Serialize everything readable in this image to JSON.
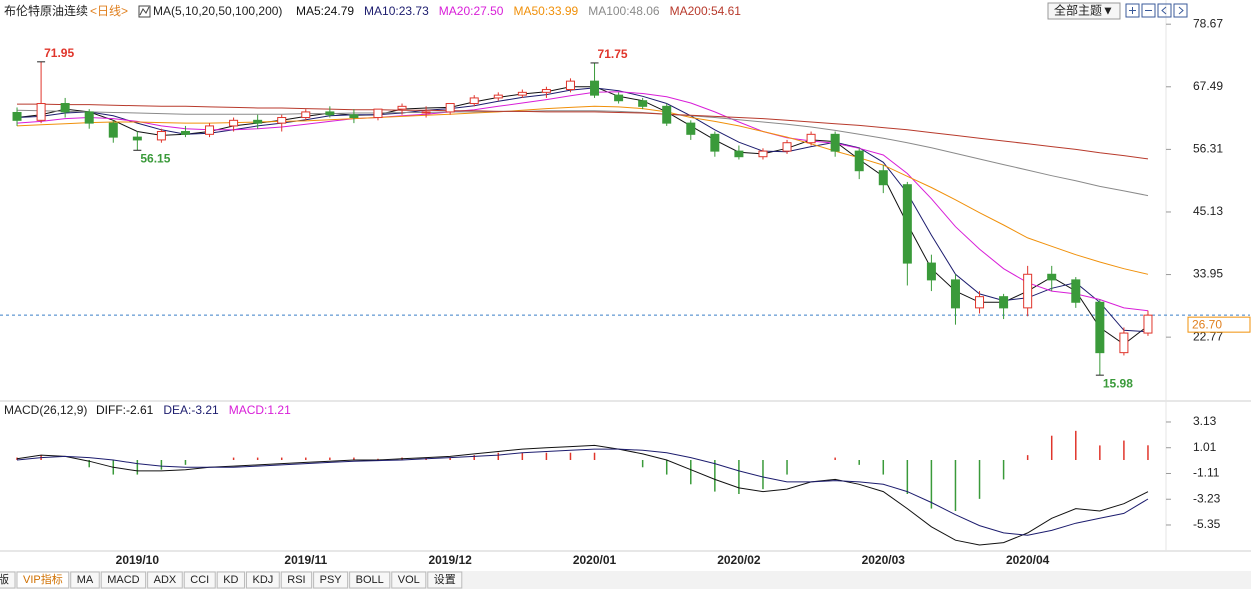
{
  "chart_data": [
    {
      "type": "candlestick",
      "title": "布伦特原油连续",
      "period": "<日线>",
      "indicator": "MA(5,10,20,50,100,200)",
      "up_color": "#e0352b",
      "down_color": "#3a9a3a",
      "open": [
        62.9,
        61.5,
        64.5,
        63,
        61,
        58.5,
        58,
        59.5,
        59,
        60.5,
        61.5,
        61,
        62,
        63,
        62.5,
        62,
        63.5,
        63,
        63,
        64.5,
        65.5,
        66,
        66.5,
        67,
        68.5,
        66,
        65,
        64,
        61,
        59,
        56,
        55,
        56,
        57.5,
        59,
        56,
        52.5,
        50,
        36,
        33,
        28,
        30,
        28,
        34,
        33,
        29,
        20,
        23.5
      ],
      "high": [
        63.8,
        71.95,
        65.5,
        63.5,
        61.5,
        59.5,
        60,
        60.5,
        61,
        62,
        62.5,
        62.5,
        63.5,
        64,
        63.5,
        63.5,
        64.5,
        64,
        64.5,
        66,
        66.5,
        67,
        67.5,
        69,
        71.75,
        66.5,
        65.5,
        64.5,
        61.5,
        59.5,
        57,
        56.5,
        58,
        59.5,
        59.5,
        56.5,
        53.5,
        50.5,
        37.5,
        34,
        31,
        30.5,
        35.5,
        35.5,
        33.5,
        29.5,
        24.5,
        27.5
      ],
      "low": [
        60.5,
        61,
        62,
        60,
        57.5,
        56.15,
        57.5,
        58.5,
        58.5,
        59.5,
        60,
        59.5,
        61.5,
        62,
        61,
        61.5,
        62.5,
        62,
        62.5,
        64,
        65,
        65.5,
        65.5,
        66.5,
        65.5,
        64.5,
        63.5,
        60.5,
        58,
        55,
        54.5,
        54.5,
        55.5,
        57,
        55,
        51,
        48.5,
        32,
        31,
        25,
        27,
        26,
        26.5,
        31,
        28,
        15.98,
        19.5,
        23
      ],
      "close": [
        61.5,
        64.5,
        63,
        61,
        58.5,
        58,
        59.5,
        59,
        60.5,
        61.5,
        61,
        62,
        63,
        62.5,
        62,
        63.5,
        64,
        63,
        64.5,
        65.5,
        66,
        66.5,
        67,
        68.5,
        66,
        65,
        64,
        61,
        59,
        56,
        55,
        56,
        57.5,
        59,
        56,
        52.5,
        50,
        36,
        33,
        28,
        30,
        28,
        34,
        33,
        29,
        20,
        23.5,
        26.7
      ],
      "series": [
        {
          "name": "MA5:24.79",
          "color": "#111111",
          "values": [
            62,
            62.5,
            63.5,
            63,
            61.5,
            59.5,
            58.8,
            59,
            59.5,
            60.5,
            61,
            61.5,
            62.2,
            62.8,
            62.4,
            62.5,
            63.5,
            63.7,
            63.8,
            64.8,
            65.6,
            66.2,
            66.6,
            67.5,
            67.5,
            65.8,
            65,
            63,
            60.5,
            58,
            55.8,
            55.5,
            56.5,
            58,
            57.7,
            54.5,
            51.5,
            43,
            35,
            31,
            29,
            29,
            31,
            33.5,
            31,
            24.5,
            21.5,
            24.79
          ]
        },
        {
          "name": "MA10:23.73",
          "color": "#1c1c6e",
          "values": [
            62,
            62.2,
            62.8,
            63,
            62.3,
            61,
            59.8,
            59,
            59.2,
            59.8,
            60.5,
            61,
            61.6,
            62.3,
            62.5,
            62.5,
            62.8,
            63.3,
            63.6,
            64.1,
            64.9,
            65.6,
            66.1,
            66.9,
            67.3,
            66.8,
            65.8,
            64.5,
            62.3,
            59.8,
            57.6,
            56,
            55.9,
            56.8,
            57.6,
            56.6,
            54,
            48.5,
            41,
            34,
            30.5,
            29.3,
            29.8,
            31.5,
            32.5,
            29,
            24,
            23.73
          ]
        },
        {
          "name": "MA20:27.50",
          "color": "#d81ed8",
          "values": [
            61,
            61.3,
            61.8,
            62,
            61.8,
            61.3,
            60.5,
            60,
            59.8,
            59.8,
            60,
            60.3,
            60.8,
            61.3,
            61.8,
            62,
            62.3,
            62.6,
            63,
            63.4,
            64,
            64.6,
            65.2,
            65.9,
            66.5,
            66.6,
            66.3,
            65.7,
            64.6,
            63,
            61.2,
            59.5,
            58.4,
            57.8,
            57.4,
            56.5,
            55.3,
            52,
            47.5,
            42.5,
            38.5,
            35,
            32.5,
            31,
            30.5,
            29.5,
            28,
            27.5
          ]
        },
        {
          "name": "MA50:33.99",
          "color": "#f0900a",
          "values": [
            60.5,
            60.7,
            60.9,
            61.1,
            61.2,
            61.2,
            61.1,
            61,
            61,
            61.1,
            61.2,
            61.3,
            61.4,
            61.6,
            61.8,
            62,
            62.2,
            62.4,
            62.6,
            62.8,
            63,
            63.3,
            63.6,
            63.8,
            64,
            63.9,
            63.6,
            63,
            62,
            61.3,
            60.5,
            59.5,
            58.5,
            57.3,
            56,
            54.8,
            53.5,
            51.5,
            49.5,
            47.3,
            45,
            42.8,
            40.5,
            39,
            37.5,
            36.2,
            35,
            33.99
          ]
        },
        {
          "name": "MA100:48.06",
          "color": "#8a8a8a",
          "values": [
            63.3,
            63.2,
            63.1,
            63,
            62.9,
            62.8,
            62.7,
            62.6,
            62.6,
            62.6,
            62.6,
            62.6,
            62.7,
            62.7,
            62.8,
            62.8,
            62.9,
            62.9,
            63,
            63,
            63.1,
            63.1,
            63.2,
            63.2,
            63.2,
            63.1,
            62.9,
            62.6,
            62.3,
            62,
            61.6,
            61.2,
            60.8,
            60.3,
            59.7,
            59,
            58.3,
            57.5,
            56.6,
            55.6,
            54.6,
            53.6,
            52.6,
            51.6,
            50.7,
            49.7,
            48.9,
            48.06
          ]
        },
        {
          "name": "MA200:54.61",
          "color": "#b83a2c",
          "values": [
            64.4,
            64.4,
            64.3,
            64.3,
            64.2,
            64.1,
            64,
            64,
            63.9,
            63.8,
            63.7,
            63.7,
            63.6,
            63.5,
            63.4,
            63.4,
            63.3,
            63.3,
            63.2,
            63.2,
            63.1,
            63.1,
            63,
            63,
            63,
            62.9,
            62.8,
            62.6,
            62.4,
            62.2,
            62,
            61.8,
            61.5,
            61.2,
            60.9,
            60.6,
            60.2,
            59.8,
            59.3,
            58.8,
            58.3,
            57.8,
            57.3,
            56.8,
            56.3,
            55.7,
            55.2,
            54.61
          ]
        }
      ],
      "annotations": [
        {
          "text": "71.95",
          "candle": 1
        },
        {
          "text": "56.15",
          "candle": 5
        },
        {
          "text": "71.75",
          "candle": 24
        },
        {
          "text": "15.98",
          "candle": 45
        }
      ],
      "last_price": {
        "value": 26.7,
        "label": "26.70"
      },
      "ylim": [
        11.9,
        82.1
      ],
      "yticks": [
        78.67,
        67.49,
        56.31,
        45.13,
        33.95,
        22.77
      ]
    },
    {
      "type": "macd",
      "title": "MACD(26,12,9)",
      "categories": [
        null,
        null,
        null,
        null,
        null,
        "2019/10",
        null,
        null,
        null,
        null,
        null,
        null,
        "2019/11",
        null,
        null,
        null,
        null,
        null,
        "2019/12",
        null,
        null,
        null,
        null,
        null,
        "2020/01",
        null,
        null,
        null,
        null,
        null,
        "2020/02",
        null,
        null,
        null,
        null,
        null,
        "2020/03",
        null,
        null,
        null,
        null,
        null,
        "2020/04",
        null,
        null,
        null,
        null,
        null
      ],
      "series": [
        {
          "name": "DIFF:-2.61",
          "color": "#111111",
          "values": [
            0.1,
            0.4,
            0.3,
            -0.1,
            -0.6,
            -0.9,
            -0.9,
            -0.8,
            -0.6,
            -0.5,
            -0.4,
            -0.3,
            -0.2,
            -0.1,
            0,
            0,
            0.1,
            0.2,
            0.3,
            0.5,
            0.7,
            0.9,
            1,
            1.1,
            1.2,
            0.9,
            0.5,
            0,
            -0.8,
            -1.6,
            -2.3,
            -2.6,
            -2.4,
            -1.8,
            -1.6,
            -2,
            -2.6,
            -4,
            -5.5,
            -6.6,
            -7,
            -6.8,
            -6,
            -4.8,
            -4,
            -4.2,
            -3.6,
            -2.61
          ]
        },
        {
          "name": "DEA:-3.21",
          "color": "#1c1c6e",
          "values": [
            0,
            0.2,
            0.3,
            0.2,
            0,
            -0.3,
            -0.5,
            -0.6,
            -0.6,
            -0.6,
            -0.5,
            -0.4,
            -0.3,
            -0.2,
            -0.1,
            -0.05,
            0,
            0.1,
            0.2,
            0.3,
            0.4,
            0.6,
            0.7,
            0.8,
            0.9,
            0.9,
            0.8,
            0.6,
            0.2,
            -0.3,
            -0.9,
            -1.4,
            -1.8,
            -1.8,
            -1.7,
            -1.8,
            -2,
            -2.6,
            -3.5,
            -4.5,
            -5.4,
            -6,
            -6.2,
            -5.8,
            -5.2,
            -4.8,
            -4.4,
            -3.21
          ]
        }
      ],
      "histogram": {
        "name": "MACD:1.21",
        "color": "#d81ed8",
        "up_color": "#e0352b",
        "down_color": "#3a9a3a",
        "values": [
          0.2,
          0.4,
          0,
          -0.6,
          -1.2,
          -1.2,
          -0.8,
          -0.4,
          0,
          0.2,
          0.2,
          0.2,
          0.2,
          0.2,
          0.2,
          0.1,
          0.2,
          0.2,
          0.2,
          0.4,
          0.6,
          0.6,
          0.6,
          0.6,
          0.6,
          0,
          -0.6,
          -1.2,
          -2,
          -2.6,
          -2.8,
          -2.4,
          -1.2,
          0,
          0.2,
          -0.4,
          -1.2,
          -2.8,
          -4,
          -4.2,
          -3.2,
          -1.6,
          0.4,
          2,
          2.4,
          1.2,
          1.6,
          1.21
        ]
      },
      "ylim": [
        -7.41,
        4.61
      ],
      "yticks": [
        3.13,
        1.01,
        -1.11,
        -3.23,
        -5.35
      ]
    }
  ],
  "ui": {
    "theme_button": "全部主题▼",
    "tabs": [
      "版",
      "VIP指标",
      "MA",
      "MACD",
      "ADX",
      "CCI",
      "KD",
      "KDJ",
      "RSI",
      "PSY",
      "BOLL",
      "VOL",
      "设置"
    ]
  }
}
